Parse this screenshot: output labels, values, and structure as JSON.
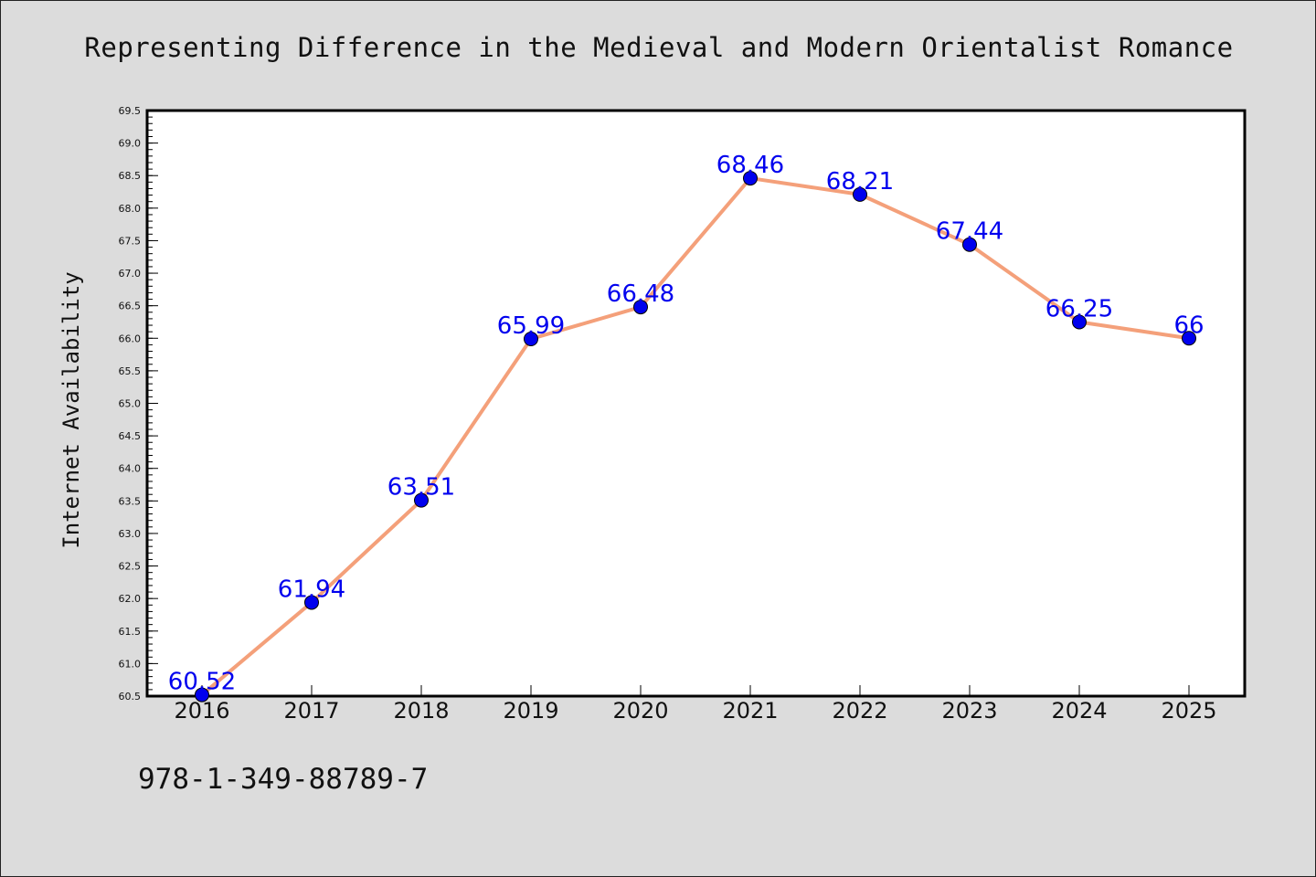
{
  "page": {
    "background": "#dcdcdc",
    "isbn": "978-1-349-88789-7"
  },
  "chart_data": {
    "type": "line",
    "title": "Representing Difference in the Medieval and Modern Orientalist Romance",
    "xlabel": "",
    "ylabel": "Internet Availability",
    "categories": [
      "2016",
      "2017",
      "2018",
      "2019",
      "2020",
      "2021",
      "2022",
      "2023",
      "2024",
      "2025"
    ],
    "series": [
      {
        "values": [
          60.52,
          61.94,
          63.51,
          65.99,
          66.48,
          68.46,
          68.21,
          67.44,
          66.25,
          66
        ],
        "data_labels": [
          "60.52",
          "61.94",
          "63.51",
          "65.99",
          "66.48",
          "68.46",
          "68.21",
          "67.44",
          "66.25",
          "66"
        ],
        "line_color": "#f4a07a",
        "marker_color": "#0000ee"
      }
    ],
    "ylim": [
      60.5,
      69.5
    ],
    "yticks": [
      "60.5",
      "61.0",
      "61.5",
      "62.0",
      "62.5",
      "63.0",
      "63.5",
      "64.0",
      "64.5",
      "65.0",
      "65.5",
      "66.0",
      "66.5",
      "67.0",
      "67.5",
      "68.0",
      "68.5",
      "69.0",
      "69.5"
    ],
    "grid": false,
    "legend": "none",
    "plot_background": "#ffffff",
    "label_color": "#0000ee"
  }
}
